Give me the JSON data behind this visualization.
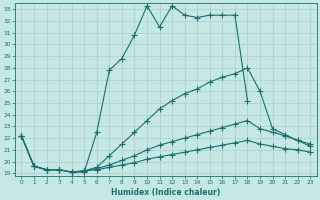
{
  "xlabel": "Humidex (Indice chaleur)",
  "ylabel": "",
  "xlim": [
    -0.5,
    23.5
  ],
  "ylim": [
    18.8,
    33.5
  ],
  "yticks": [
    19,
    20,
    21,
    22,
    23,
    24,
    25,
    26,
    27,
    28,
    29,
    30,
    31,
    32,
    33
  ],
  "xticks": [
    0,
    1,
    2,
    3,
    4,
    5,
    6,
    7,
    8,
    9,
    10,
    11,
    12,
    13,
    14,
    15,
    16,
    17,
    18,
    19,
    20,
    21,
    22,
    23
  ],
  "bg_color": "#c5e8e5",
  "line_color": "#1a6e6e",
  "grid_color": "#a8cece",
  "lines": [
    {
      "x": [
        0,
        1,
        2,
        3,
        4,
        5,
        6,
        7,
        8,
        9,
        10,
        11,
        12,
        13,
        14,
        15,
        16,
        17,
        18
      ],
      "y": [
        22.2,
        19.6,
        19.3,
        19.3,
        19.1,
        19.1,
        22.5,
        27.8,
        28.8,
        30.8,
        33.3,
        31.5,
        33.3,
        32.5,
        32.3,
        32.5,
        32.5,
        32.5,
        25.2
      ],
      "marker": "+",
      "markersize": 4
    },
    {
      "x": [
        0,
        1,
        2,
        3,
        4,
        5,
        6,
        7,
        8,
        9,
        10,
        11,
        12,
        13,
        14,
        15,
        16,
        17,
        18,
        19,
        20,
        21,
        22,
        23
      ],
      "y": [
        22.2,
        19.6,
        19.3,
        19.3,
        19.1,
        19.2,
        19.5,
        20.5,
        21.5,
        22.5,
        23.5,
        24.5,
        25.2,
        25.8,
        26.2,
        26.8,
        27.2,
        27.5,
        28.0,
        26.0,
        22.8,
        22.3,
        21.8,
        21.3
      ],
      "marker": "+",
      "markersize": 4
    },
    {
      "x": [
        0,
        1,
        2,
        3,
        4,
        5,
        6,
        7,
        8,
        9,
        10,
        11,
        12,
        13,
        14,
        15,
        16,
        17,
        18,
        19,
        20,
        21,
        22,
        23
      ],
      "y": [
        22.2,
        19.6,
        19.3,
        19.3,
        19.1,
        19.2,
        19.4,
        19.7,
        20.1,
        20.5,
        21.0,
        21.4,
        21.7,
        22.0,
        22.3,
        22.6,
        22.9,
        23.2,
        23.5,
        22.8,
        22.5,
        22.2,
        21.8,
        21.5
      ],
      "marker": "+",
      "markersize": 4
    },
    {
      "x": [
        0,
        1,
        2,
        3,
        4,
        5,
        6,
        7,
        8,
        9,
        10,
        11,
        12,
        13,
        14,
        15,
        16,
        17,
        18,
        19,
        20,
        21,
        22,
        23
      ],
      "y": [
        22.2,
        19.6,
        19.3,
        19.3,
        19.1,
        19.2,
        19.3,
        19.5,
        19.7,
        19.9,
        20.2,
        20.4,
        20.6,
        20.8,
        21.0,
        21.2,
        21.4,
        21.6,
        21.8,
        21.5,
        21.3,
        21.1,
        21.0,
        20.8
      ],
      "marker": "+",
      "markersize": 4
    }
  ]
}
